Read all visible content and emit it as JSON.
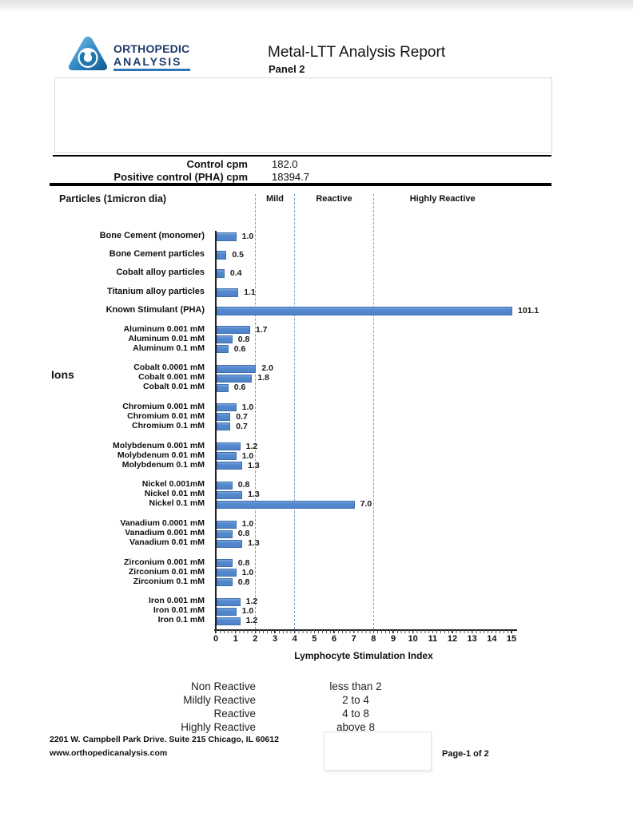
{
  "page": {
    "header": {
      "logo_line1": "ORTHOPEDIC",
      "logo_line2": "ANALYSIS",
      "title": "Metal-LTT Analysis Report",
      "subtitle": "Panel 2"
    },
    "controls": {
      "rows": [
        {
          "label": "Control cpm",
          "value": "182.0"
        },
        {
          "label": "Positive control (PHA) cpm",
          "value": "18394.7"
        }
      ]
    },
    "section_label": "Particles (1micron dia)",
    "ions_label": "Ions",
    "legend": {
      "rows": [
        {
          "label": "Non Reactive",
          "value": "less than 2"
        },
        {
          "label": "Mildly Reactive",
          "value": "2 to 4"
        },
        {
          "label": "Reactive",
          "value": "4 to 8"
        },
        {
          "label": "Highly Reactive",
          "value": "above 8"
        }
      ]
    },
    "footer": {
      "address": "2201 W. Campbell Park Drive. Suite 215   Chicago, IL 60612",
      "website": "www.orthopedicanalysis.com",
      "page": "Page-1 of 2"
    }
  },
  "chart_data": {
    "type": "bar",
    "orientation": "horizontal",
    "title": "",
    "xlabel": "Lymphocyte Stimulation Index",
    "ylabel": "",
    "xlim": [
      0,
      15
    ],
    "x_ticks": [
      0,
      1,
      2,
      3,
      4,
      5,
      6,
      7,
      8,
      9,
      10,
      11,
      12,
      13,
      14,
      15
    ],
    "grid": false,
    "bar_color": "#5589cf",
    "zone_line_values": [
      2,
      4,
      8
    ],
    "zones": [
      {
        "label": "Mild",
        "from": 2,
        "to": 4
      },
      {
        "label": "Reactive",
        "from": 4,
        "to": 8
      },
      {
        "label": "Highly Reactive",
        "from": 8,
        "to": 15
      }
    ],
    "particle_items": [
      {
        "label": "Bone Cement (monomer)",
        "value": 1.0,
        "display": "1.0"
      },
      {
        "label": "Bone Cement particles",
        "value": 0.5,
        "display": "0.5"
      },
      {
        "label": "Cobalt alloy particles",
        "value": 0.4,
        "display": "0.4"
      },
      {
        "label": "Titanium alloy particles",
        "value": 1.1,
        "display": "1.1"
      },
      {
        "label": "Known Stimulant (PHA)",
        "value": 101.1,
        "display": "101.1"
      }
    ],
    "ion_groups": [
      {
        "name": "Aluminum",
        "items": [
          {
            "label": "Aluminum 0.001 mM",
            "value": 1.7,
            "display": "1.7"
          },
          {
            "label": "Aluminum 0.01 mM",
            "value": 0.8,
            "display": "0.8"
          },
          {
            "label": "Aluminum 0.1 mM",
            "value": 0.6,
            "display": "0.6"
          }
        ]
      },
      {
        "name": "Cobalt",
        "items": [
          {
            "label": "Cobalt 0.0001 mM",
            "value": 2.0,
            "display": "2.0"
          },
          {
            "label": "Cobalt 0.001 mM",
            "value": 1.8,
            "display": "1.8"
          },
          {
            "label": "Cobalt 0.01 mM",
            "value": 0.6,
            "display": "0.6"
          }
        ]
      },
      {
        "name": "Chromium",
        "items": [
          {
            "label": "Chromium 0.001 mM",
            "value": 1.0,
            "display": "1.0"
          },
          {
            "label": "Chromium 0.01 mM",
            "value": 0.7,
            "display": "0.7"
          },
          {
            "label": "Chromium 0.1 mM",
            "value": 0.7,
            "display": "0.7"
          }
        ]
      },
      {
        "name": "Molybdenum",
        "items": [
          {
            "label": "Molybdenum 0.001 mM",
            "value": 1.2,
            "display": "1.2"
          },
          {
            "label": "Molybdenum 0.01 mM",
            "value": 1.0,
            "display": "1.0"
          },
          {
            "label": "Molybdenum 0.1 mM",
            "value": 1.3,
            "display": "1.3"
          }
        ]
      },
      {
        "name": "Nickel",
        "items": [
          {
            "label": "Nickel 0.001mM",
            "value": 0.8,
            "display": "0.8"
          },
          {
            "label": "Nickel 0.01 mM",
            "value": 1.3,
            "display": "1.3"
          },
          {
            "label": "Nickel 0.1 mM",
            "value": 7.0,
            "display": "7.0"
          }
        ]
      },
      {
        "name": "Vanadium",
        "items": [
          {
            "label": "Vanadium 0.0001 mM",
            "value": 1.0,
            "display": "1.0"
          },
          {
            "label": "Vanadium 0.001 mM",
            "value": 0.8,
            "display": "0.8"
          },
          {
            "label": "Vanadium 0.01 mM",
            "value": 1.3,
            "display": "1.3"
          }
        ]
      },
      {
        "name": "Zirconium",
        "items": [
          {
            "label": "Zirconium 0.001 mM",
            "value": 0.8,
            "display": "0.8"
          },
          {
            "label": "Zirconium 0.01 mM",
            "value": 1.0,
            "display": "1.0"
          },
          {
            "label": "Zirconium 0.1 mM",
            "value": 0.8,
            "display": "0.8"
          }
        ]
      },
      {
        "name": "Iron",
        "items": [
          {
            "label": "Iron 0.001 mM",
            "value": 1.2,
            "display": "1.2"
          },
          {
            "label": "Iron 0.01 mM",
            "value": 1.0,
            "display": "1.0"
          },
          {
            "label": "Iron 0.1 mM",
            "value": 1.2,
            "display": "1.2"
          }
        ]
      }
    ]
  }
}
